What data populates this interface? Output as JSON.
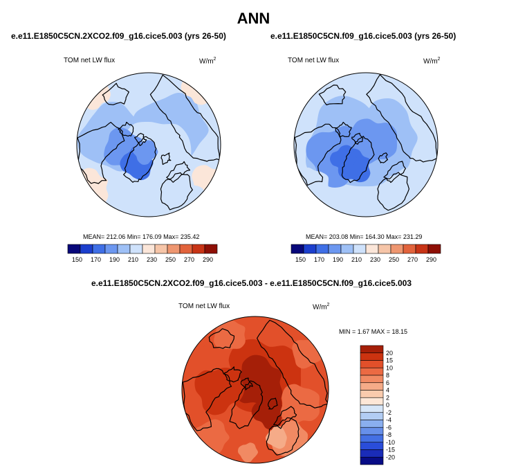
{
  "figure": {
    "title": "ANN"
  },
  "chart_data": [
    {
      "type": "heatmap",
      "projection": "polar-stereographic (Arctic)",
      "title": "e.e11.E1850C5CN.2XCO2.f09_g16.cice5.003 (yrs 26-50)",
      "field_label": "TOM net LW flux",
      "units": "W/m",
      "units_exp": "2",
      "stats_text": "MEAN= 212.06  Min= 176.09  Max= 235.42",
      "stats": {
        "mean": 212.06,
        "min": 176.09,
        "max": 235.42
      },
      "colorbar_ticks": [
        "150",
        "170",
        "190",
        "210",
        "230",
        "250",
        "270",
        "290"
      ],
      "colorbar_range": [
        140,
        300
      ],
      "colors": [
        "#08087a",
        "#1c3fcd",
        "#3f6fe6",
        "#6c97f0",
        "#9ec0f6",
        "#cfe2fb",
        "#fbe6d9",
        "#f6c5a8",
        "#ee9670",
        "#e2633c",
        "#c83416",
        "#8e0f05"
      ]
    },
    {
      "type": "heatmap",
      "projection": "polar-stereographic (Arctic)",
      "title": "e.e11.E1850C5CN.f09_g16.cice5.003 (yrs 26-50)",
      "field_label": "TOM net LW flux",
      "units": "W/m",
      "units_exp": "2",
      "stats_text": "MEAN= 203.08  Min= 164.30  Max= 231.29",
      "stats": {
        "mean": 203.08,
        "min": 164.3,
        "max": 231.29
      },
      "colorbar_ticks": [
        "150",
        "170",
        "190",
        "210",
        "230",
        "250",
        "270",
        "290"
      ],
      "colorbar_range": [
        140,
        300
      ],
      "colors": [
        "#08087a",
        "#1c3fcd",
        "#3f6fe6",
        "#6c97f0",
        "#9ec0f6",
        "#cfe2fb",
        "#fbe6d9",
        "#f6c5a8",
        "#ee9670",
        "#e2633c",
        "#c83416",
        "#8e0f05"
      ]
    },
    {
      "type": "heatmap",
      "projection": "polar-stereographic (Arctic)",
      "title": "e.e11.E1850C5CN.2XCO2.f09_g16.cice5.003 - e.e11.E1850C5CN.f09_g16.cice5.003",
      "field_label": "TOM net LW flux",
      "units": "W/m",
      "units_exp": "2",
      "stats_text": "MIN =   1.67 MAX =  18.15",
      "stats": {
        "min": 1.67,
        "max": 18.15
      },
      "colorbar_ticks": [
        "20",
        "15",
        "10",
        "8",
        "6",
        "4",
        "2",
        "0",
        "-2",
        "-4",
        "-6",
        "-8",
        "-10",
        "-15",
        "-20"
      ],
      "colors": [
        "#a51f08",
        "#cc3310",
        "#e2502a",
        "#eb6a43",
        "#f18a63",
        "#f5ab88",
        "#f9cbad",
        "#fde7d7",
        "#d6e6f8",
        "#b2cdf3",
        "#8aafef",
        "#6790ea",
        "#4470e4",
        "#2a4dda",
        "#1a2cb8",
        "#080c86"
      ]
    }
  ]
}
